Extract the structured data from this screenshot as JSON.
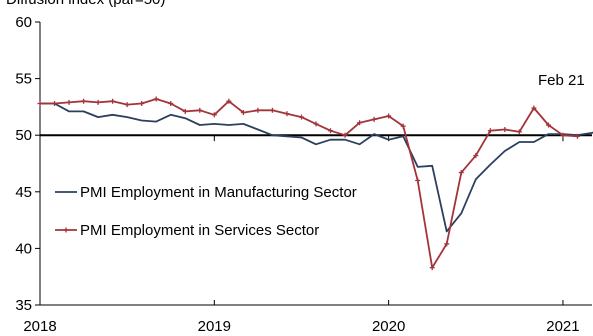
{
  "chart_data": {
    "type": "line",
    "title": "Diffusion index (par=50)",
    "ylim": [
      35,
      60
    ],
    "yticks": [
      35,
      40,
      45,
      50,
      55,
      60
    ],
    "xlim": [
      "2018-01",
      "2021-03"
    ],
    "xticks": [
      "2018",
      "2019",
      "2020",
      "2021"
    ],
    "reference_line": 50,
    "annotation": "Feb 21",
    "legend_position": "middle",
    "series": [
      {
        "name": "PMI Employment in Manufacturing Sector",
        "color": "#2b3f5f",
        "marker": "none",
        "x_start": "2018-01",
        "values": [
          52.8,
          52.8,
          52.1,
          52.1,
          51.6,
          51.8,
          51.6,
          51.3,
          51.2,
          51.8,
          51.5,
          50.9,
          51.0,
          50.9,
          51.0,
          50.5,
          50.0,
          49.9,
          49.8,
          49.2,
          49.6,
          49.6,
          49.2,
          50.1,
          49.6,
          49.9,
          47.2,
          47.3,
          41.5,
          43.1,
          46.1,
          47.4,
          48.6,
          49.4,
          49.4,
          50.1,
          50.1,
          50.0,
          50.2,
          50.6
        ]
      },
      {
        "name": "PMI Employment in Services Sector",
        "color": "#a3343a",
        "marker": "plus",
        "x_start": "2018-01",
        "values": [
          52.8,
          52.8,
          52.9,
          53.0,
          52.9,
          53.0,
          52.7,
          52.8,
          53.2,
          52.8,
          52.1,
          52.2,
          51.8,
          53.0,
          52.0,
          52.2,
          52.2,
          51.9,
          51.6,
          51.0,
          50.4,
          50.0,
          51.1,
          51.4,
          51.7,
          50.8,
          46.0,
          38.3,
          40.4,
          46.7,
          48.2,
          50.4,
          50.5,
          50.3,
          52.4,
          50.9,
          50.0,
          49.9
        ]
      }
    ]
  }
}
